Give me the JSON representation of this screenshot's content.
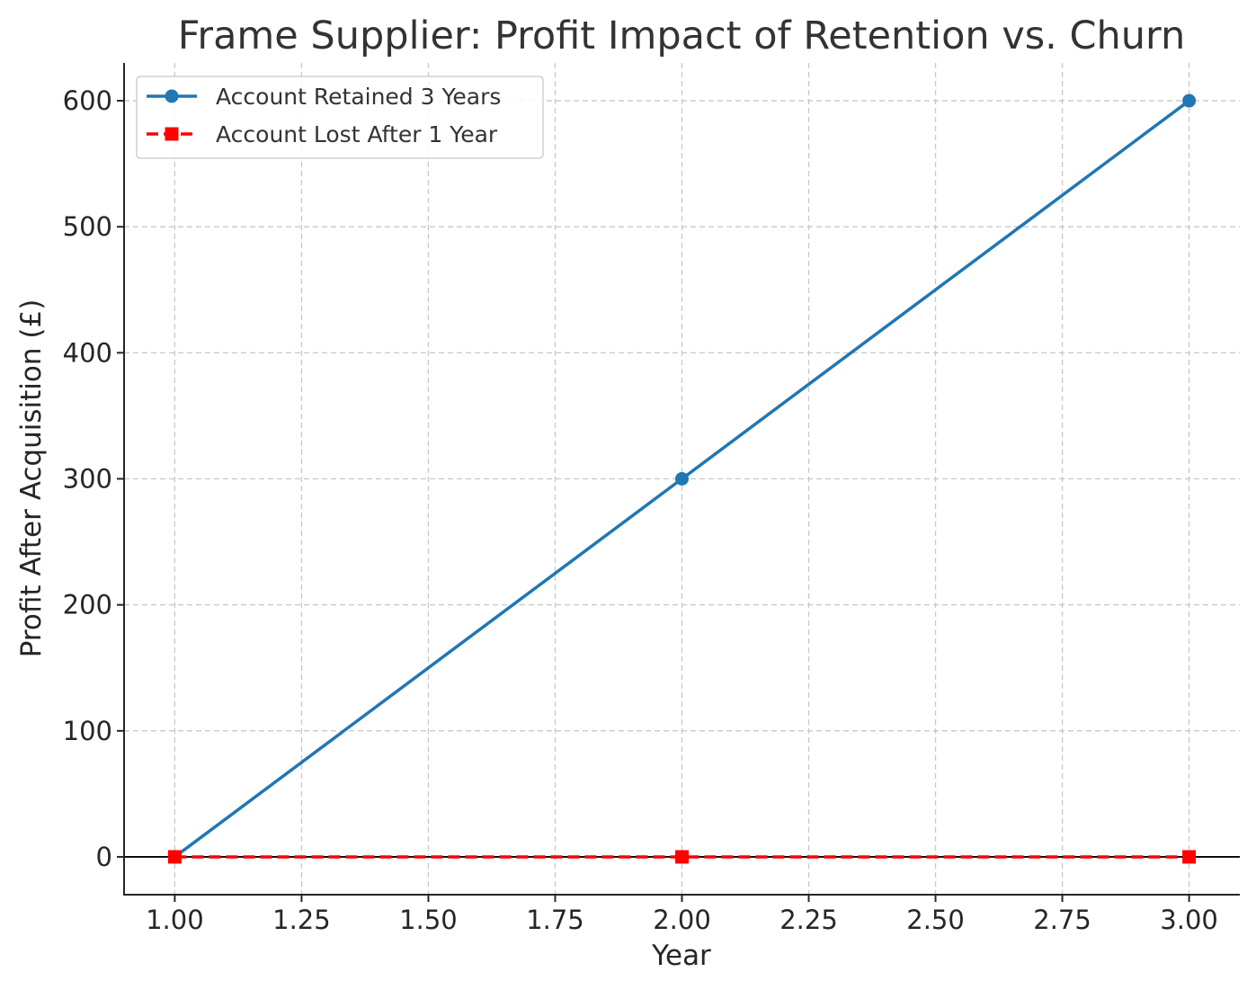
{
  "chart_data": {
    "type": "line",
    "title": "Frame Supplier: Profit Impact of Retention vs. Churn",
    "xlabel": "Year",
    "ylabel": "Profit After Acquisition (£)",
    "xlim": [
      0.9,
      3.1
    ],
    "ylim": [
      -30,
      630
    ],
    "xticks": [
      1.0,
      1.25,
      1.5,
      1.75,
      2.0,
      2.25,
      2.5,
      2.75,
      3.0
    ],
    "xtick_labels": [
      "1.00",
      "1.25",
      "1.50",
      "1.75",
      "2.00",
      "2.25",
      "2.50",
      "2.75",
      "3.00"
    ],
    "yticks": [
      0,
      100,
      200,
      300,
      400,
      500,
      600
    ],
    "ytick_labels": [
      "0",
      "100",
      "200",
      "300",
      "400",
      "500",
      "600"
    ],
    "grid": true,
    "zero_line": true,
    "legend_position": "upper-left",
    "series": [
      {
        "name": "Account Retained 3 Years",
        "x": [
          1,
          2,
          3
        ],
        "y": [
          0,
          300,
          600
        ],
        "color": "#1f77b4",
        "line_style": "solid",
        "marker": "circle"
      },
      {
        "name": "Account Lost After 1 Year",
        "x": [
          1,
          2,
          3
        ],
        "y": [
          0,
          0,
          0
        ],
        "color": "#ff0000",
        "line_style": "dashed",
        "marker": "square"
      }
    ]
  }
}
